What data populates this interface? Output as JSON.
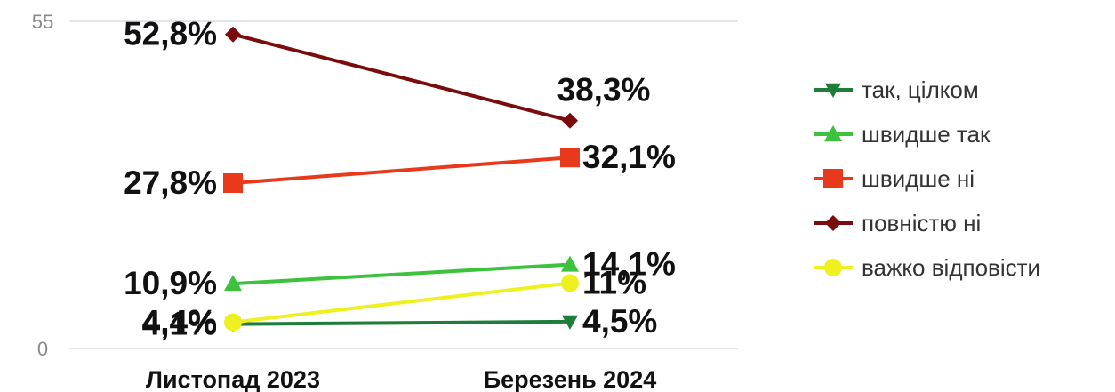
{
  "chart_data": {
    "type": "line",
    "title": "",
    "xlabel": "",
    "ylabel": "",
    "categories": [
      "Листопад 2023",
      "Березень 2024"
    ],
    "ylim": [
      0,
      55
    ],
    "y_ticks": [
      "0",
      "55"
    ],
    "grid": true,
    "legend_position": "right",
    "series": [
      {
        "name": "так, цілком",
        "values": [
          4.1,
          4.5
        ],
        "labels": [
          "4,1%",
          "4,5%"
        ],
        "color": "#1e7d3a",
        "marker": "triangle-down"
      },
      {
        "name": "швидше так",
        "values": [
          10.9,
          14.1
        ],
        "labels": [
          "10,9%",
          "14,1%"
        ],
        "color": "#3cc23c",
        "marker": "triangle-up"
      },
      {
        "name": "швидше ні",
        "values": [
          27.8,
          32.1
        ],
        "labels": [
          "27,8%",
          "32,1%"
        ],
        "color": "#e8391d",
        "marker": "square"
      },
      {
        "name": "повністю ні",
        "values": [
          52.8,
          38.3
        ],
        "labels": [
          "52,8%",
          "38,3%"
        ],
        "color": "#7a0c0c",
        "marker": "diamond"
      },
      {
        "name": "важко відповісти",
        "values": [
          4.4,
          11
        ],
        "labels": [
          "4,4%",
          "11%"
        ],
        "color": "#eef020",
        "marker": "circle"
      }
    ]
  }
}
